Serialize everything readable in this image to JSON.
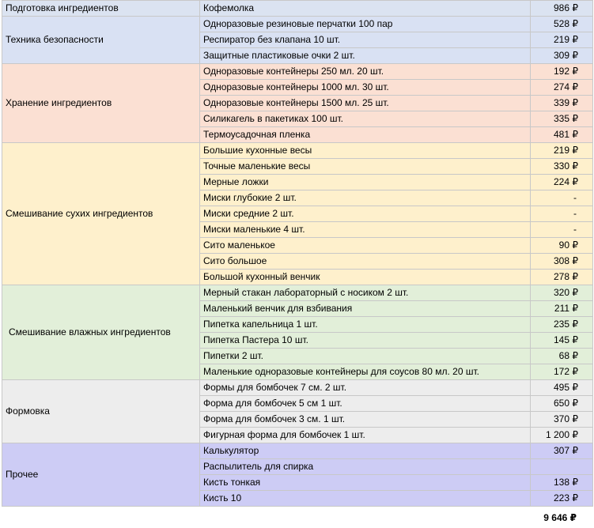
{
  "groups": [
    {
      "category": "Подготовка ингредиентов",
      "bg": "#dbe3f1",
      "indent": false,
      "items": [
        {
          "name": "Кофемолка",
          "price": "986 ₽"
        }
      ]
    },
    {
      "category": "Техника безопасности",
      "bg": "#d9e1f3",
      "indent": false,
      "items": [
        {
          "name": "Одноразовые резиновые перчатки 100 пар",
          "price": "528 ₽"
        },
        {
          "name": "Респиратор без клапана 10 шт.",
          "price": "219 ₽"
        },
        {
          "name": "Защитные пластиковые очки 2 шт.",
          "price": "309 ₽"
        }
      ]
    },
    {
      "category": "Хранение ингредиентов",
      "bg": "#fbe0d3",
      "indent": false,
      "items": [
        {
          "name": "Одноразовые контейнеры 250 мл. 20 шт.",
          "price": "192 ₽"
        },
        {
          "name": "Одноразовые контейнеры 1000 мл. 30 шт.",
          "price": "274 ₽"
        },
        {
          "name": "Одноразовые контейнеры 1500 мл. 25 шт.",
          "price": "339 ₽"
        },
        {
          "name": "Силикагель в пакетиках 100 шт.",
          "price": "335 ₽"
        },
        {
          "name": "Термоусадочная пленка",
          "price": "481 ₽"
        }
      ]
    },
    {
      "category": "Смешивание сухих ингредиентов",
      "bg": "#fef0cc",
      "indent": false,
      "items": [
        {
          "name": "Большие кухонные весы",
          "price": "219 ₽"
        },
        {
          "name": "Точные маленькие весы",
          "price": "330 ₽"
        },
        {
          "name": "Мерные ложки",
          "price": "224 ₽"
        },
        {
          "name": "Миски глубокие 2 шт.",
          "price": "-"
        },
        {
          "name": "Миски средние 2 шт.",
          "price": "-"
        },
        {
          "name": "Миски маленькие 4 шт.",
          "price": "-"
        },
        {
          "name": "Сито маленькое",
          "price": "90 ₽"
        },
        {
          "name": "Сито большое",
          "price": "308 ₽"
        },
        {
          "name": "Большой кухонный венчик",
          "price": "278 ₽"
        }
      ]
    },
    {
      "category": "Смешивание влажных ингредиентов",
      "bg": "#e2efd9",
      "indent": true,
      "items": [
        {
          "name": "Мерный стакан лабораторный с носиком 2 шт.",
          "price": "320 ₽"
        },
        {
          "name": "Маленький венчик для взбивания",
          "price": "211 ₽"
        },
        {
          "name": "Пипетка капельница 1 шт.",
          "price": "235 ₽"
        },
        {
          "name": "Пипетка Пастера 10 шт.",
          "price": "145 ₽"
        },
        {
          "name": "Пипетки 2 шт.",
          "price": "68 ₽"
        },
        {
          "name": "Маленькие одноразовые контейнеры для соусов 80 мл. 20 шт.",
          "price": "172 ₽"
        }
      ]
    },
    {
      "category": "Формовка",
      "bg": "#ededed",
      "indent": false,
      "items": [
        {
          "name": "Формы для бомбочек 7 см. 2 шт.",
          "price": "495 ₽"
        },
        {
          "name": "Форма для бомбочек 5 см 1 шт.",
          "price": "650 ₽"
        },
        {
          "name": "Форма для бомбочек 3 см. 1 шт.",
          "price": "370 ₽"
        },
        {
          "name": "Фигурная форма для бомбочек 1 шт.",
          "price": "1 200 ₽"
        }
      ]
    },
    {
      "category": "Прочее",
      "bg": "#cdccf5",
      "indent": false,
      "items": [
        {
          "name": "Калькулятор",
          "price": "307 ₽"
        },
        {
          "name": "Распылитель для спирка",
          "price": ""
        },
        {
          "name": "Кисть тонкая",
          "price": "138 ₽"
        },
        {
          "name": "Кисть 10",
          "price": "223 ₽"
        }
      ]
    }
  ],
  "total": "9 646 ₽"
}
